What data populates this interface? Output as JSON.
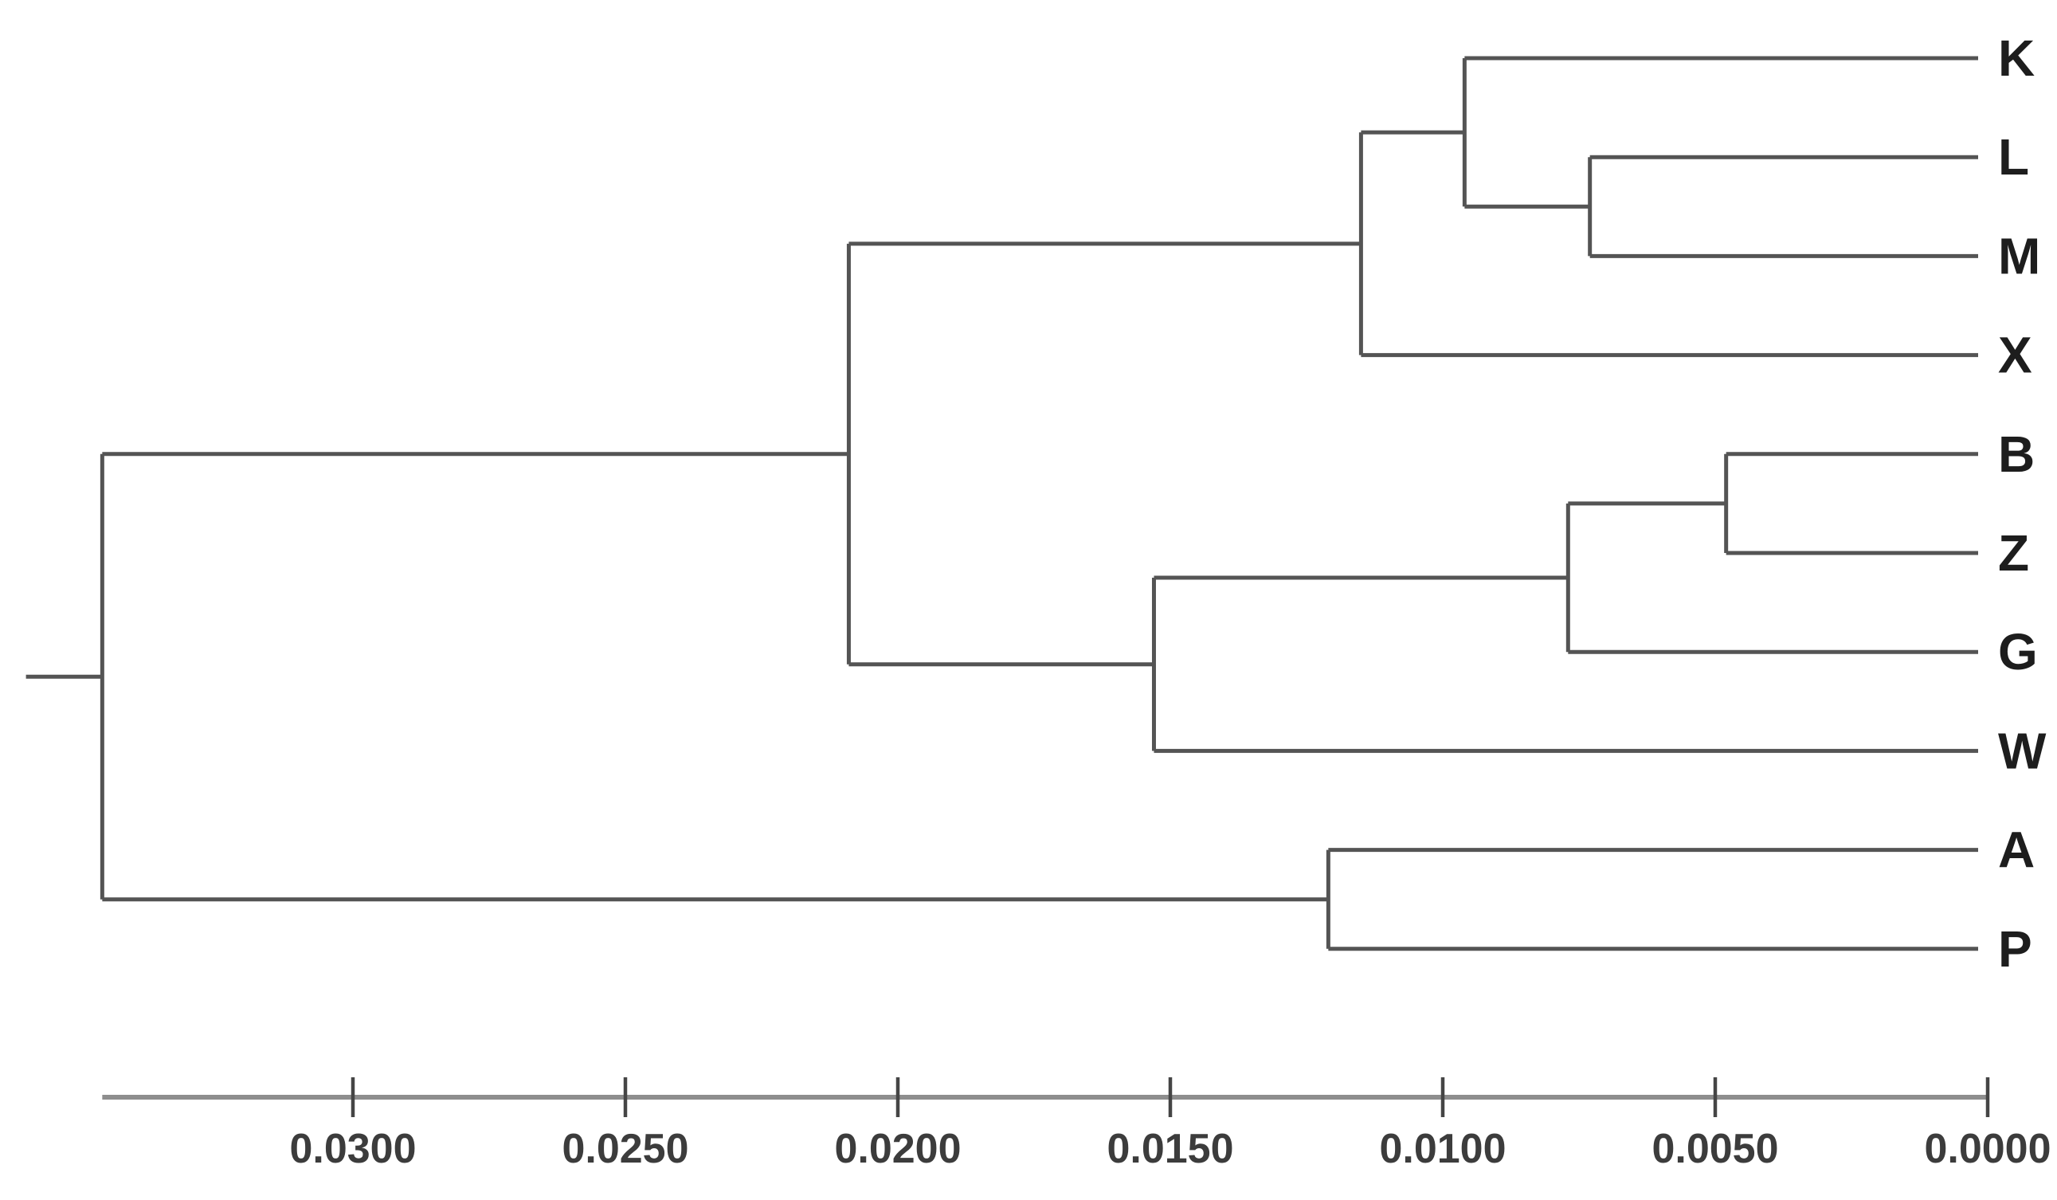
{
  "chart_data": {
    "type": "dendrogram",
    "orientation": "root-left-tips-right",
    "leaves_top_to_bottom": [
      "K",
      "L",
      "M",
      "X",
      "B",
      "Z",
      "G",
      "W",
      "A",
      "P"
    ],
    "tree": {
      "name": "root",
      "height": 0.0346,
      "root_edge_length": 0.0014,
      "children": [
        {
          "name": "clade-KLMX-BZGW",
          "height": 0.0209,
          "children": [
            {
              "name": "clade-KLMX",
              "height": 0.0115,
              "children": [
                {
                  "name": "clade-KLM",
                  "height": 0.0096,
                  "children": [
                    {
                      "leaf": "K",
                      "height": 0
                    },
                    {
                      "name": "clade-LM",
                      "height": 0.0073,
                      "children": [
                        {
                          "leaf": "L",
                          "height": 0
                        },
                        {
                          "leaf": "M",
                          "height": 0
                        }
                      ]
                    }
                  ]
                },
                {
                  "leaf": "X",
                  "height": 0
                }
              ]
            },
            {
              "name": "clade-BZGW",
              "height": 0.0153,
              "children": [
                {
                  "name": "clade-BZG",
                  "height": 0.0077,
                  "children": [
                    {
                      "name": "clade-BZ",
                      "height": 0.0048,
                      "children": [
                        {
                          "leaf": "B",
                          "height": 0
                        },
                        {
                          "leaf": "Z",
                          "height": 0
                        }
                      ]
                    },
                    {
                      "leaf": "G",
                      "height": 0
                    }
                  ]
                },
                {
                  "leaf": "W",
                  "height": 0
                }
              ]
            }
          ]
        },
        {
          "name": "clade-AP",
          "height": 0.0121,
          "children": [
            {
              "leaf": "A",
              "height": 0
            },
            {
              "leaf": "P",
              "height": 0
            }
          ]
        }
      ]
    },
    "axis": {
      "direction": "decreasing-rightward",
      "tick_labels": [
        "0.0300",
        "0.0250",
        "0.0200",
        "0.0150",
        "0.0100",
        "0.0050",
        "0.0000"
      ],
      "tick_values": [
        0.03,
        0.025,
        0.02,
        0.015,
        0.01,
        0.005,
        0.0
      ]
    },
    "colors": {
      "background": "#ffffff",
      "branch": "#545454",
      "leaf_label": "#1d1d1d",
      "axis_line": "#8e8e8e",
      "tick": "#454545",
      "tick_label": "#3c3c3c"
    }
  }
}
